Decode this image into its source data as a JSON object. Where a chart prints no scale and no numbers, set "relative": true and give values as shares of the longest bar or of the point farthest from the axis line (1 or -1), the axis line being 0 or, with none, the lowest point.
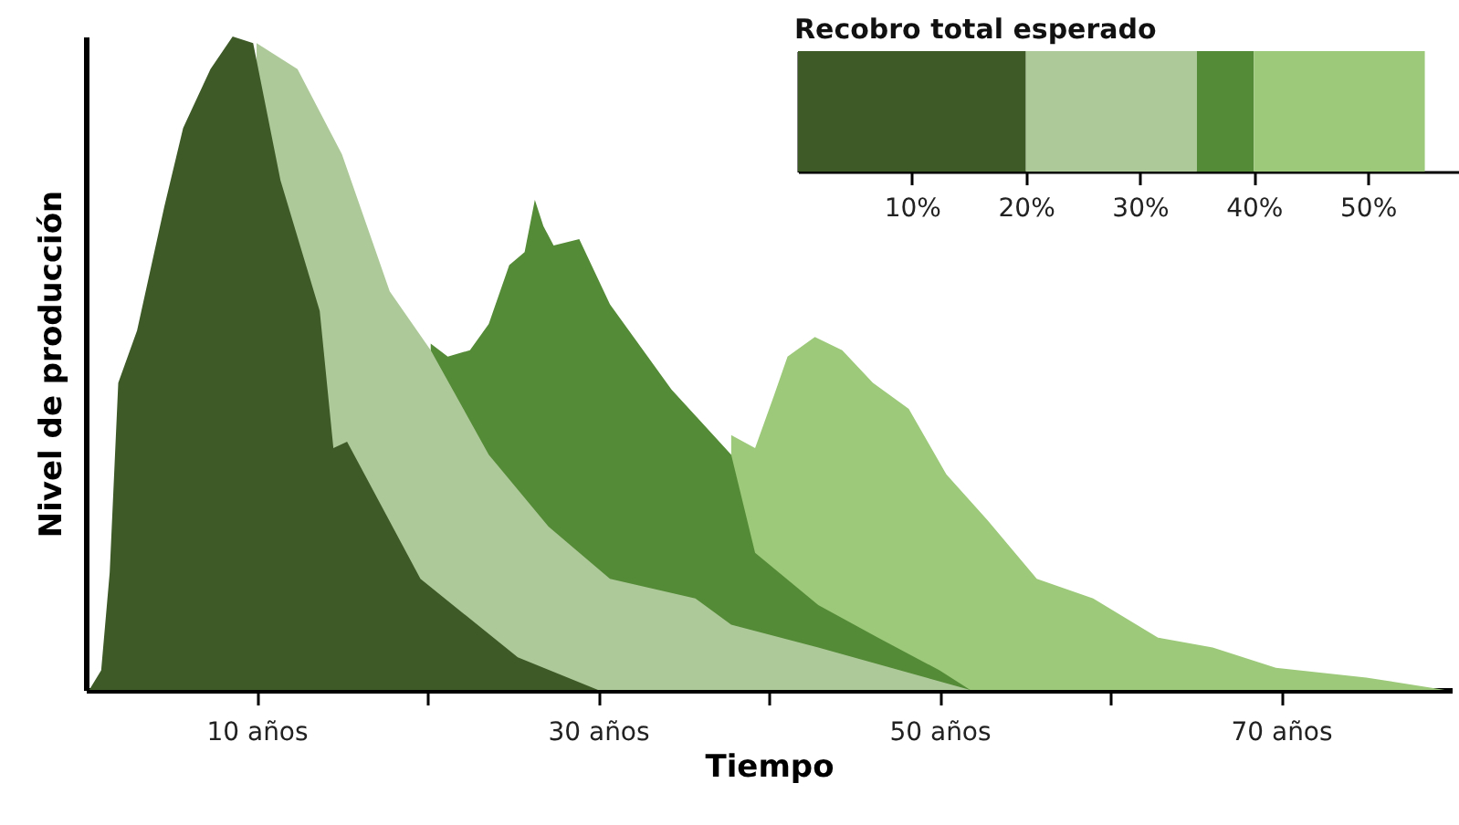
{
  "chart_data": [
    {
      "type": "area",
      "xlabel": "Tiempo",
      "ylabel": "Nivel de producción",
      "relative": true,
      "xlim": [
        0,
        80
      ],
      "xticks": [
        {
          "value": 10,
          "label": "10 años"
        },
        {
          "value": 20,
          "label": null
        },
        {
          "value": 30,
          "label": "30 años"
        },
        {
          "value": 40,
          "label": null
        },
        {
          "value": 50,
          "label": "50 años"
        },
        {
          "value": 60,
          "label": null
        },
        {
          "value": 70,
          "label": "70 años"
        }
      ],
      "grid": false,
      "series": [
        {
          "color": "#3d5a27",
          "x": [
            0.2,
            0.9,
            1.4,
            1.9,
            3.0,
            4.6,
            5.7,
            7.3,
            8.6,
            9.8,
            11.4,
            13.7,
            14.5,
            15.3,
            19.6,
            25.3,
            30.0
          ],
          "values": [
            0,
            0.03,
            0.18,
            0.47,
            0.55,
            0.74,
            0.86,
            0.95,
            1,
            0.99,
            0.78,
            0.58,
            0.37,
            0.38,
            0.17,
            0.05,
            0
          ]
        },
        {
          "color": "#adc99a",
          "x": [
            10.0,
            12.4,
            15.0,
            17.8,
            20.2,
            23.6,
            27.1,
            30.7,
            35.7,
            37.8,
            42.9,
            51.8
          ],
          "values": [
            0.99,
            0.95,
            0.82,
            0.61,
            0.52,
            0.36,
            0.25,
            0.17,
            0.14,
            0.1,
            0.065,
            0
          ]
        },
        {
          "color": "#548b36",
          "x": [
            20.2,
            21.2,
            22.5,
            23.6,
            24.8,
            25.7,
            26.3,
            26.8,
            27.4,
            28.9,
            30.7,
            34.3,
            37.8,
            39.2,
            42.9,
            46.4,
            50.0,
            51.8
          ],
          "values": [
            0.53,
            0.51,
            0.52,
            0.56,
            0.65,
            0.67,
            0.75,
            0.71,
            0.68,
            0.69,
            0.59,
            0.46,
            0.36,
            0.21,
            0.13,
            0.08,
            0.03,
            0
          ]
        },
        {
          "color": "#9cc97a",
          "x": [
            37.8,
            39.2,
            40.3,
            41.1,
            42.7,
            44.3,
            46.1,
            48.2,
            50.4,
            52.8,
            55.7,
            59.0,
            62.8,
            66.0,
            69.7,
            75.0,
            79.6
          ],
          "values": [
            0.39,
            0.37,
            0.45,
            0.51,
            0.54,
            0.52,
            0.47,
            0.43,
            0.33,
            0.26,
            0.17,
            0.14,
            0.08,
            0.065,
            0.034,
            0.019,
            0
          ]
        }
      ]
    },
    {
      "type": "bar",
      "title": "Recobro total esperado",
      "orientation": "horizontal",
      "stacked": true,
      "categories": [
        null
      ],
      "xlim": [
        0,
        58
      ],
      "xticks": [
        {
          "value": 10,
          "label": "10%"
        },
        {
          "value": 20,
          "label": "20%"
        },
        {
          "value": 30,
          "label": "30%"
        },
        {
          "value": 40,
          "label": "40%"
        },
        {
          "value": 50,
          "label": "50%"
        }
      ],
      "grid": false,
      "series": [
        {
          "color": "#3d5a27",
          "values": [
            20
          ]
        },
        {
          "color": "#adc99a",
          "values": [
            15
          ]
        },
        {
          "color": "#548b36",
          "values": [
            5
          ]
        },
        {
          "color": "#9cc97a",
          "values": [
            15
          ]
        }
      ]
    }
  ]
}
